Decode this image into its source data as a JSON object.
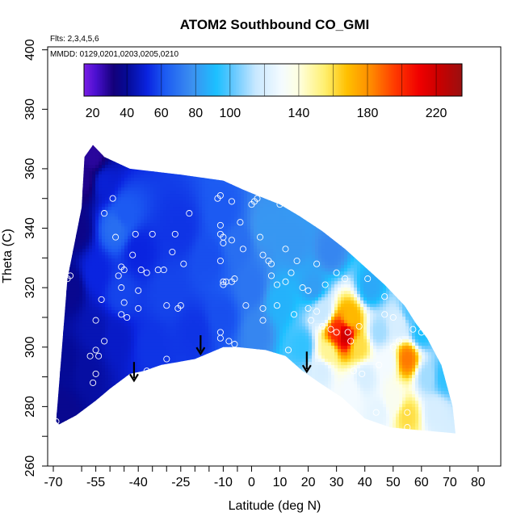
{
  "chart_data": {
    "type": "heatmap",
    "title": "ATOM2 Southbound CO_GMI",
    "flights_note": "Flts: 2,3,4,5,6",
    "dates_note": "MMDD: 0129,0201,0203,0205,0210",
    "xlabel": "Latitude (deg N)",
    "ylabel": "Theta (C)",
    "xlim": [
      -72,
      88
    ],
    "ylim": [
      260,
      401
    ],
    "x_ticks": [
      -70,
      -55,
      -40,
      -25,
      -10,
      0,
      10,
      20,
      30,
      40,
      50,
      60,
      70,
      80
    ],
    "x_tick_labels": [
      "-70",
      "-55",
      "-40",
      "-25",
      "-10",
      "0",
      "10",
      "20",
      "30",
      "40",
      "50",
      "60",
      "70",
      "80"
    ],
    "x_minor_ticks": [
      -60,
      -50,
      -45,
      -35,
      -30,
      -20,
      -15,
      -5
    ],
    "y_ticks": [
      260,
      280,
      300,
      320,
      340,
      360,
      380,
      400
    ],
    "y_tick_labels": [
      "260",
      "280",
      "300",
      "320",
      "340",
      "360",
      "380",
      "400"
    ],
    "y_minor_ticks": [
      270,
      290,
      310,
      330,
      350
    ],
    "colorbar": {
      "range": [
        15,
        235
      ],
      "tick_values": [
        20,
        40,
        60,
        80,
        100,
        140,
        180,
        220
      ],
      "tick_labels": [
        "20",
        "40",
        "60",
        "80",
        "100",
        "140",
        "180",
        "220"
      ],
      "stops": [
        {
          "v": 15,
          "c": "#7a1ee6"
        },
        {
          "v": 22,
          "c": "#4a0fcf"
        },
        {
          "v": 32,
          "c": "#14007a"
        },
        {
          "v": 40,
          "c": "#050a96"
        },
        {
          "v": 52,
          "c": "#0a24e0"
        },
        {
          "v": 62,
          "c": "#1c5af2"
        },
        {
          "v": 78,
          "c": "#3c90f0"
        },
        {
          "v": 92,
          "c": "#1cc0ff"
        },
        {
          "v": 102,
          "c": "#64c8ff"
        },
        {
          "v": 115,
          "c": "#c8e8ff"
        },
        {
          "v": 130,
          "c": "#f4fbff"
        },
        {
          "v": 140,
          "c": "#ffffe0"
        },
        {
          "v": 155,
          "c": "#fff070"
        },
        {
          "v": 168,
          "c": "#ffc000"
        },
        {
          "v": 182,
          "c": "#ff8a00"
        },
        {
          "v": 196,
          "c": "#ff3a00"
        },
        {
          "v": 210,
          "c": "#f00000"
        },
        {
          "v": 222,
          "c": "#c80000"
        },
        {
          "v": 235,
          "c": "#9a1010"
        }
      ]
    },
    "field_outline": {
      "top": [
        [
          -69,
          275
        ],
        [
          -65,
          323
        ],
        [
          -60,
          347
        ],
        [
          -59,
          364
        ],
        [
          -56,
          368
        ],
        [
          -52,
          364
        ],
        [
          -43,
          360
        ],
        [
          -25,
          358
        ],
        [
          -10,
          356
        ],
        [
          -3,
          353
        ],
        [
          2,
          351
        ],
        [
          10,
          348
        ],
        [
          17,
          344
        ],
        [
          25,
          339
        ],
        [
          33,
          333
        ],
        [
          40,
          327
        ],
        [
          47,
          321
        ],
        [
          54,
          314
        ],
        [
          58,
          308
        ],
        [
          62,
          303
        ],
        [
          67,
          294
        ],
        [
          71,
          280
        ],
        [
          72,
          271
        ]
      ],
      "bottom": [
        [
          72,
          271
        ],
        [
          60,
          272
        ],
        [
          49,
          273
        ],
        [
          40,
          276
        ],
        [
          32,
          283
        ],
        [
          24,
          288
        ],
        [
          18,
          292
        ],
        [
          12,
          297
        ],
        [
          5,
          299
        ],
        [
          -5,
          300
        ],
        [
          -10,
          300
        ],
        [
          -15,
          298
        ],
        [
          -20,
          296
        ],
        [
          -26,
          295
        ],
        [
          -32,
          294
        ],
        [
          -38,
          292
        ],
        [
          -43,
          291
        ],
        [
          -50,
          286
        ],
        [
          -55,
          282
        ],
        [
          -62,
          277
        ],
        [
          -68,
          274
        ]
      ]
    },
    "field_anchors": [
      {
        "x": -56,
        "y": 364,
        "v": 28
      },
      {
        "x": -59,
        "y": 356,
        "v": 30
      },
      {
        "x": -62,
        "y": 340,
        "v": 36
      },
      {
        "x": -64,
        "y": 320,
        "v": 38
      },
      {
        "x": -66,
        "y": 295,
        "v": 40
      },
      {
        "x": -67,
        "y": 278,
        "v": 38
      },
      {
        "x": -58,
        "y": 292,
        "v": 42
      },
      {
        "x": -55,
        "y": 305,
        "v": 45
      },
      {
        "x": -55,
        "y": 325,
        "v": 52
      },
      {
        "x": -52,
        "y": 355,
        "v": 50
      },
      {
        "x": -48,
        "y": 340,
        "v": 68
      },
      {
        "x": -45,
        "y": 345,
        "v": 62
      },
      {
        "x": -46,
        "y": 318,
        "v": 58
      },
      {
        "x": -48,
        "y": 303,
        "v": 48
      },
      {
        "x": -40,
        "y": 332,
        "v": 52
      },
      {
        "x": -35,
        "y": 300,
        "v": 55
      },
      {
        "x": -30,
        "y": 318,
        "v": 58
      },
      {
        "x": -25,
        "y": 340,
        "v": 55
      },
      {
        "x": -20,
        "y": 305,
        "v": 55
      },
      {
        "x": -15,
        "y": 330,
        "v": 60
      },
      {
        "x": -10,
        "y": 345,
        "v": 62
      },
      {
        "x": -10,
        "y": 310,
        "v": 60
      },
      {
        "x": -5,
        "y": 335,
        "v": 68
      },
      {
        "x": 0,
        "y": 320,
        "v": 70
      },
      {
        "x": 2,
        "y": 305,
        "v": 75
      },
      {
        "x": 5,
        "y": 340,
        "v": 80
      },
      {
        "x": 10,
        "y": 315,
        "v": 88
      },
      {
        "x": 15,
        "y": 335,
        "v": 80
      },
      {
        "x": 18,
        "y": 300,
        "v": 95
      },
      {
        "x": 22,
        "y": 320,
        "v": 82
      },
      {
        "x": 28,
        "y": 332,
        "v": 75
      },
      {
        "x": 25,
        "y": 312,
        "v": 115
      },
      {
        "x": 30,
        "y": 305,
        "v": 200
      },
      {
        "x": 33,
        "y": 304,
        "v": 220
      },
      {
        "x": 35,
        "y": 310,
        "v": 170
      },
      {
        "x": 27,
        "y": 298,
        "v": 150
      },
      {
        "x": 38,
        "y": 300,
        "v": 160
      },
      {
        "x": 25,
        "y": 292,
        "v": 120
      },
      {
        "x": 35,
        "y": 285,
        "v": 130
      },
      {
        "x": 42,
        "y": 320,
        "v": 85
      },
      {
        "x": 45,
        "y": 305,
        "v": 110
      },
      {
        "x": 48,
        "y": 295,
        "v": 130
      },
      {
        "x": 55,
        "y": 296,
        "v": 185
      },
      {
        "x": 52,
        "y": 308,
        "v": 120
      },
      {
        "x": 56,
        "y": 312,
        "v": 100
      },
      {
        "x": 60,
        "y": 305,
        "v": 92
      },
      {
        "x": 62,
        "y": 290,
        "v": 110
      },
      {
        "x": 50,
        "y": 282,
        "v": 135
      },
      {
        "x": 55,
        "y": 277,
        "v": 160
      },
      {
        "x": 65,
        "y": 278,
        "v": 120
      },
      {
        "x": 68,
        "y": 290,
        "v": 95
      },
      {
        "x": 45,
        "y": 278,
        "v": 125
      },
      {
        "x": 40,
        "y": 290,
        "v": 120
      }
    ],
    "observation_points": [
      [
        -69,
        289
      ],
      [
        -69,
        294
      ],
      [
        -69,
        275
      ],
      [
        -65,
        323
      ],
      [
        -64,
        324
      ],
      [
        -57,
        297
      ],
      [
        -55,
        299
      ],
      [
        -56,
        288
      ],
      [
        -55,
        291
      ],
      [
        -54,
        297
      ],
      [
        -55,
        309
      ],
      [
        -53,
        316
      ],
      [
        -52,
        302
      ],
      [
        -52,
        345
      ],
      [
        -49,
        350
      ],
      [
        -48,
        337
      ],
      [
        -47,
        324
      ],
      [
        -46,
        327
      ],
      [
        -45,
        326
      ],
      [
        -46,
        320
      ],
      [
        -45,
        315
      ],
      [
        -46,
        311
      ],
      [
        -44,
        310
      ],
      [
        -42,
        331
      ],
      [
        -41,
        338
      ],
      [
        -40,
        319
      ],
      [
        -40,
        313
      ],
      [
        -39,
        326
      ],
      [
        -37,
        292
      ],
      [
        -37,
        325
      ],
      [
        -35,
        338
      ],
      [
        -33,
        326
      ],
      [
        -31,
        326
      ],
      [
        -30,
        314
      ],
      [
        -30,
        296
      ],
      [
        -28,
        332
      ],
      [
        -27,
        338
      ],
      [
        -26,
        313
      ],
      [
        -25,
        314
      ],
      [
        -24,
        328
      ],
      [
        -22,
        345
      ],
      [
        -12,
        350
      ],
      [
        -11,
        351
      ],
      [
        -11,
        341
      ],
      [
        -11,
        338
      ],
      [
        -10,
        337
      ],
      [
        -10,
        335
      ],
      [
        -11,
        329
      ],
      [
        -10,
        322
      ],
      [
        -10,
        321
      ],
      [
        -9,
        322
      ],
      [
        -11,
        305
      ],
      [
        -11,
        303
      ],
      [
        -11,
        296
      ],
      [
        -8,
        302
      ],
      [
        -7,
        336
      ],
      [
        -7,
        349
      ],
      [
        -7,
        322
      ],
      [
        -6,
        323
      ],
      [
        -6,
        301
      ],
      [
        -4,
        342
      ],
      [
        -3,
        333
      ],
      [
        -2,
        314
      ],
      [
        0,
        348
      ],
      [
        1,
        349
      ],
      [
        2,
        350
      ],
      [
        3,
        337
      ],
      [
        4,
        331
      ],
      [
        4,
        313
      ],
      [
        4,
        309
      ],
      [
        5,
        297
      ],
      [
        6,
        329
      ],
      [
        7,
        328
      ],
      [
        7,
        324
      ],
      [
        9,
        314
      ],
      [
        9,
        321
      ],
      [
        10,
        348
      ],
      [
        11,
        349
      ],
      [
        12,
        333
      ],
      [
        12,
        322
      ],
      [
        13,
        299
      ],
      [
        14,
        325
      ],
      [
        15,
        311
      ],
      [
        16,
        329
      ],
      [
        18,
        320
      ],
      [
        20,
        319
      ],
      [
        20,
        313
      ],
      [
        21,
        309
      ],
      [
        23,
        328
      ],
      [
        23,
        312
      ],
      [
        25,
        307
      ],
      [
        26,
        321
      ],
      [
        28,
        306
      ],
      [
        30,
        305
      ],
      [
        30,
        325
      ],
      [
        33,
        323
      ],
      [
        34,
        305
      ],
      [
        35,
        302
      ],
      [
        36,
        292
      ],
      [
        38,
        307
      ],
      [
        39,
        291
      ],
      [
        41,
        323
      ],
      [
        44,
        278
      ],
      [
        45,
        294
      ],
      [
        47,
        317
      ],
      [
        47,
        311
      ],
      [
        50,
        310
      ],
      [
        50,
        300
      ],
      [
        52,
        302
      ],
      [
        55,
        278
      ],
      [
        55,
        273
      ],
      [
        57,
        306
      ],
      [
        60,
        305
      ]
    ],
    "arrows": [
      {
        "x": -41.5,
        "y_top": 295,
        "y_tip": 289
      },
      {
        "x": -18,
        "y_top": 304,
        "y_tip": 298
      },
      {
        "x": 19.5,
        "y_top": 298.5,
        "y_tip": 292
      }
    ]
  }
}
